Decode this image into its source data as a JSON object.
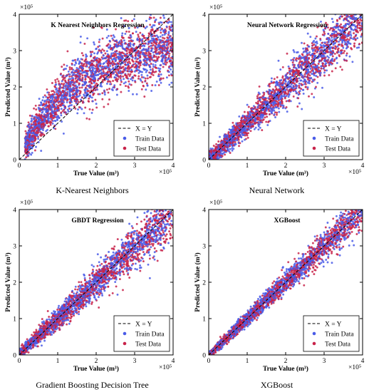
{
  "colors": {
    "train": "#4a5ce8",
    "test": "#c8234a",
    "identity": "#000000"
  },
  "chart_data": [
    {
      "type": "scatter",
      "title": "K Nearest Neighbors Regression",
      "caption": "K-Nearest Neighbors",
      "xlabel": "True Value (m³)",
      "ylabel": "Predicted Value (m³)",
      "xlim": [
        0,
        400000
      ],
      "ylim": [
        0,
        400000
      ],
      "x_ticks": [
        "0",
        "1",
        "2",
        "3",
        "4"
      ],
      "y_ticks": [
        "0",
        "1",
        "2",
        "3",
        "4"
      ],
      "scale_label": "×10⁵",
      "legend": [
        "X = Y",
        "Train Data",
        "Test Data"
      ],
      "legend_position": "bottom-right",
      "pattern": "knn"
    },
    {
      "type": "scatter",
      "title": "Neural Network Regression",
      "caption": "Neural Network",
      "xlabel": "True Value (m³)",
      "ylabel": "Predicted Value (m³)",
      "xlim": [
        0,
        400000
      ],
      "ylim": [
        0,
        400000
      ],
      "x_ticks": [
        "0",
        "1",
        "2",
        "3",
        "4"
      ],
      "y_ticks": [
        "0",
        "1",
        "2",
        "3",
        "4"
      ],
      "scale_label": "×10⁵",
      "legend": [
        "X = Y",
        "Train Data",
        "Test Data"
      ],
      "legend_position": "bottom-right",
      "pattern": "nn"
    },
    {
      "type": "scatter",
      "title": "GBDT Regression",
      "caption": "Gradient Boosting Decision Tree",
      "xlabel": "True Value (m³)",
      "ylabel": "Predicted Value (m³)",
      "xlim": [
        0,
        400000
      ],
      "ylim": [
        0,
        400000
      ],
      "x_ticks": [
        "0",
        "1",
        "2",
        "3",
        "4"
      ],
      "y_ticks": [
        "0",
        "1",
        "2",
        "3",
        "4"
      ],
      "scale_label": "×10⁵",
      "legend": [
        "X = Y",
        "Train Data",
        "Test Data"
      ],
      "legend_position": "bottom-right",
      "pattern": "gbdt"
    },
    {
      "type": "scatter",
      "title": "XGBoost",
      "caption": "XGBoost",
      "xlabel": "True Value (m³)",
      "ylabel": "Predicted Value (m³)",
      "xlim": [
        0,
        400000
      ],
      "ylim": [
        0,
        400000
      ],
      "x_ticks": [
        "0",
        "1",
        "2",
        "3",
        "4"
      ],
      "y_ticks": [
        "0",
        "1",
        "2",
        "3",
        "4"
      ],
      "scale_label": "×10⁵",
      "legend": [
        "X = Y",
        "Train Data",
        "Test Data"
      ],
      "legend_position": "bottom-right",
      "pattern": "xgb"
    }
  ]
}
